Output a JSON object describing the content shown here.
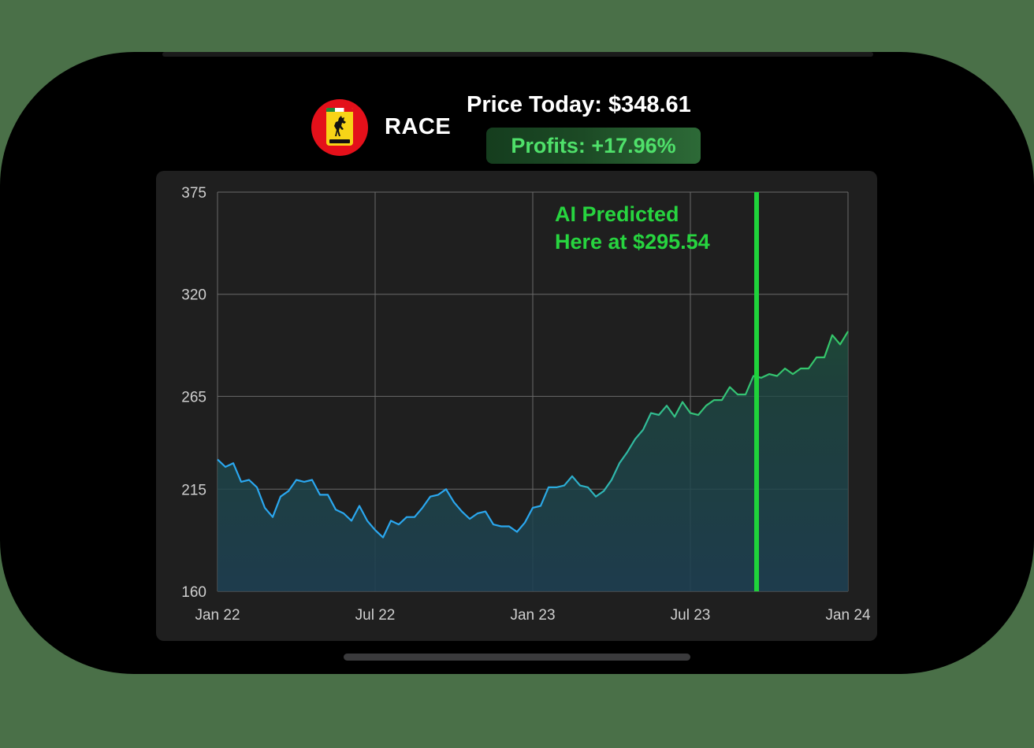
{
  "header": {
    "ticker": "RACE",
    "price_label": "Price Today: $348.61",
    "profits_label": "Profits: +17.96%"
  },
  "logo": {
    "name": "ferrari-logo"
  },
  "colors": {
    "past_line": "#2aa7ef",
    "future_line": "#35c768",
    "marker": "#1fd33a",
    "annotation": "#27d43f",
    "profits_text": "#4fe06a"
  },
  "chart_data": {
    "type": "area",
    "y_ticks": [
      "375",
      "320",
      "265",
      "215",
      "160"
    ],
    "y_tick_values": [
      375,
      320,
      265,
      215,
      160
    ],
    "x_ticks": [
      "Jan 22",
      "Jul 22",
      "Jan 23",
      "Jul 23",
      "Jan 24"
    ],
    "x_tick_values": [
      2022.0,
      2022.5,
      2023.0,
      2023.5,
      2024.0
    ],
    "ylim": [
      160,
      375
    ],
    "xlim": [
      2022.0,
      2024.0
    ],
    "grid": true,
    "annotation_lines": [
      "AI Predicted",
      "Here at $295.54"
    ],
    "prediction_x": 2023.71,
    "prediction_price": 295.54,
    "color_switch_x": 2023.0,
    "series": [
      {
        "values": [
          [
            2022.0,
            231
          ],
          [
            2022.01,
            227
          ],
          [
            2022.02,
            229
          ],
          [
            2022.03,
            219
          ],
          [
            2022.04,
            220
          ],
          [
            2022.05,
            216
          ],
          [
            2022.06,
            205
          ],
          [
            2022.07,
            200
          ],
          [
            2022.08,
            211
          ],
          [
            2022.09,
            214
          ],
          [
            2022.1,
            220
          ],
          [
            2022.11,
            219
          ],
          [
            2022.12,
            220
          ],
          [
            2022.13,
            212
          ],
          [
            2022.14,
            212
          ],
          [
            2022.15,
            204
          ],
          [
            2022.16,
            202
          ],
          [
            2022.17,
            198
          ],
          [
            2022.18,
            206
          ],
          [
            2022.19,
            198
          ],
          [
            2022.2,
            193
          ],
          [
            2022.21,
            189
          ],
          [
            2022.22,
            198
          ],
          [
            2022.23,
            196
          ],
          [
            2022.24,
            200
          ],
          [
            2022.25,
            200
          ],
          [
            2022.26,
            205
          ],
          [
            2022.27,
            211
          ],
          [
            2022.28,
            212
          ],
          [
            2022.29,
            215
          ],
          [
            2022.3,
            208
          ],
          [
            2022.31,
            203
          ],
          [
            2022.32,
            199
          ],
          [
            2022.33,
            202
          ],
          [
            2022.34,
            203
          ],
          [
            2022.35,
            196
          ],
          [
            2022.36,
            195
          ],
          [
            2022.37,
            195
          ],
          [
            2022.38,
            192
          ],
          [
            2022.39,
            197
          ],
          [
            2022.4,
            205
          ],
          [
            2022.41,
            206
          ],
          [
            2022.42,
            216
          ],
          [
            2022.43,
            216
          ],
          [
            2022.44,
            217
          ],
          [
            2022.45,
            222
          ],
          [
            2022.46,
            217
          ],
          [
            2022.47,
            216
          ],
          [
            2022.48,
            211
          ],
          [
            2022.49,
            214
          ],
          [
            2022.5,
            220
          ],
          [
            2022.51,
            229
          ],
          [
            2022.52,
            235
          ],
          [
            2022.53,
            242
          ],
          [
            2022.54,
            247
          ],
          [
            2022.55,
            256
          ],
          [
            2022.56,
            255
          ],
          [
            2022.57,
            260
          ],
          [
            2022.58,
            254
          ],
          [
            2022.59,
            262
          ],
          [
            2022.6,
            256
          ],
          [
            2022.61,
            255
          ],
          [
            2022.62,
            260
          ],
          [
            2022.63,
            263
          ],
          [
            2022.64,
            263
          ],
          [
            2022.65,
            270
          ],
          [
            2022.66,
            266
          ],
          [
            2022.67,
            266
          ],
          [
            2022.68,
            276
          ],
          [
            2022.69,
            275
          ],
          [
            2022.7,
            277
          ],
          [
            2022.71,
            276
          ],
          [
            2022.72,
            280
          ],
          [
            2022.73,
            277
          ],
          [
            2022.74,
            280
          ],
          [
            2022.75,
            280
          ],
          [
            2022.76,
            286
          ],
          [
            2022.77,
            286
          ],
          [
            2022.78,
            298
          ],
          [
            2022.79,
            293
          ],
          [
            2022.8,
            300
          ]
        ]
      }
    ]
  }
}
